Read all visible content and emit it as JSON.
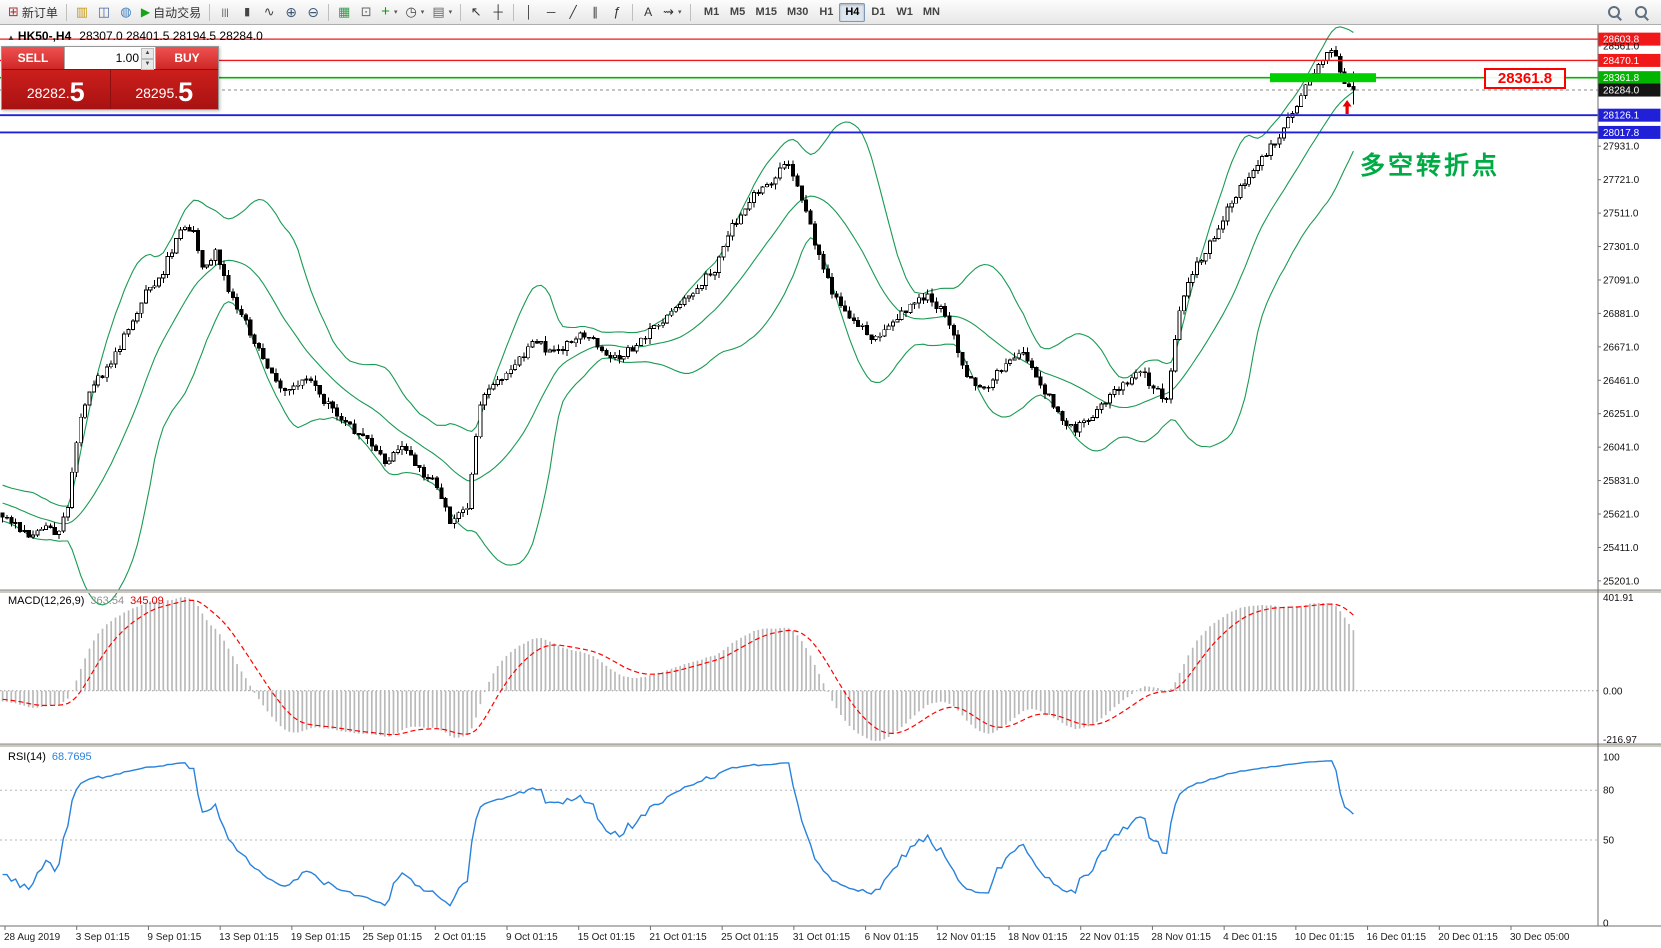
{
  "toolbar": {
    "groups": [
      {
        "items": [
          {
            "name": "new-order-button",
            "glyph": "⊞",
            "color": "#b03030",
            "size": 13,
            "label": "新订单"
          }
        ]
      },
      {
        "items": [
          {
            "name": "new-chart-button",
            "glyph": "▥",
            "color": "#c79b18",
            "size": 13
          },
          {
            "name": "profiles-button",
            "glyph": "◫",
            "color": "#46699c",
            "size": 13
          },
          {
            "name": "terminal-button",
            "glyph": "◍",
            "color": "#3f7fbf",
            "size": 13
          },
          {
            "name": "autotrading-button",
            "glyph": "▶",
            "color": "#17a317",
            "size": 12,
            "label": "自动交易"
          }
        ]
      },
      {
        "items": [
          {
            "name": "bar-chart-button",
            "glyph": "|||",
            "color": "#444",
            "size": 9
          },
          {
            "name": "candlestick-chart-button",
            "glyph": "▮",
            "color": "#444",
            "size": 11
          },
          {
            "name": "line-chart-button",
            "glyph": "∿",
            "color": "#444",
            "size": 13
          },
          {
            "name": "zoom-in-button",
            "glyph": "⊕",
            "color": "#3c5a78",
            "size": 14
          },
          {
            "name": "zoom-out-button",
            "glyph": "⊖",
            "color": "#3c5a78",
            "size": 14
          }
        ]
      },
      {
        "items": [
          {
            "name": "tile-windows-button",
            "glyph": "▦",
            "color": "#2f9e44",
            "size": 13
          },
          {
            "name": "new-window-button",
            "glyph": "⊡",
            "color": "#666666",
            "size": 13
          },
          {
            "name": "indicators-button",
            "glyph": "+",
            "color": "#0d9e0d",
            "size": 15,
            "caret": true
          },
          {
            "name": "periods-button",
            "glyph": "◷",
            "color": "#444444",
            "size": 13,
            "caret": true
          },
          {
            "name": "templates-button",
            "glyph": "▤",
            "color": "#666666",
            "size": 13,
            "caret": true
          }
        ]
      },
      {
        "items": [
          {
            "name": "cursor-button",
            "glyph": "↖",
            "color": "#333333",
            "size": 13
          },
          {
            "name": "crosshair-button",
            "glyph": "┼",
            "color": "#333333",
            "size": 13
          }
        ]
      },
      {
        "items": [
          {
            "name": "vertical-line-button",
            "glyph": "│",
            "color": "#333333",
            "size": 12
          },
          {
            "name": "horizontal-line-button",
            "glyph": "─",
            "color": "#333333",
            "size": 12
          },
          {
            "name": "trendline-button",
            "glyph": "╱",
            "color": "#333333",
            "size": 12
          },
          {
            "name": "channel-button",
            "glyph": "∥",
            "color": "#333333",
            "size": 12
          },
          {
            "name": "fibonacci-button",
            "glyph": "ƒ",
            "color": "#333333",
            "size": 13
          }
        ]
      },
      {
        "items": [
          {
            "name": "text-label-button",
            "glyph": "A",
            "color": "#333333",
            "size": 12
          },
          {
            "name": "arrows-button",
            "glyph": "⇝",
            "color": "#333333",
            "size": 13,
            "caret": true
          }
        ]
      }
    ],
    "timeframes": [
      "M1",
      "M5",
      "M15",
      "M30",
      "H1",
      "H4",
      "D1",
      "W1",
      "MN"
    ],
    "active_timeframe": "H4"
  },
  "chart_header": {
    "marker": "▲",
    "symbol": "HK50-,H4",
    "ohlc": "28307.0 28401.5 28194.5 28284.0"
  },
  "trade_panel": {
    "sell_label": "SELL",
    "buy_label": "BUY",
    "volume": "1.00",
    "sell_price_main": "28282.",
    "sell_price_big": "5",
    "buy_price_main": "28295.",
    "buy_price_big": "5"
  },
  "price_axis": {
    "ticks": [
      "28561.0",
      "27931.0",
      "27721.0",
      "27511.0",
      "27301.0",
      "27091.0",
      "26881.0",
      "26671.0",
      "26461.0",
      "26251.0",
      "26041.0",
      "25831.0",
      "25621.0",
      "25411.0",
      "25201.0"
    ],
    "levels": [
      {
        "price": 28603.8,
        "label": "28603.8",
        "color": "#f01818",
        "width": 1.3
      },
      {
        "price": 28470.1,
        "label": "28470.1",
        "color": "#f01818",
        "width": 1.3
      },
      {
        "price": 28361.8,
        "label": "28361.8",
        "color": "#00b400",
        "width": 1.6
      },
      {
        "price": 28126.1,
        "label": "28126.1",
        "color": "#2020d8",
        "width": 1.8
      },
      {
        "price": 28017.8,
        "label": "28017.8",
        "color": "#2020d8",
        "width": 1.8
      }
    ],
    "current": {
      "price": 28284.0,
      "label": "28284.0"
    }
  },
  "time_axis": {
    "labels": [
      "28 Aug 2019",
      "3 Sep 01:15",
      "9 Sep 01:15",
      "13 Sep 01:15",
      "19 Sep 01:15",
      "25 Sep 01:15",
      "2 Oct 01:15",
      "9 Oct 01:15",
      "15 Oct 01:15",
      "21 Oct 01:15",
      "25 Oct 01:15",
      "31 Oct 01:15",
      "6 Nov 01:15",
      "12 Nov 01:15",
      "18 Nov 01:15",
      "22 Nov 01:15",
      "28 Nov 01:15",
      "4 Dec 01:15",
      "10 Dec 01:15",
      "16 Dec 01:15",
      "20 Dec 01:15",
      "30 Dec 05:00"
    ]
  },
  "macd_panel": {
    "name": "MACD(12,26,9)",
    "main_value": "363.54",
    "signal_value": "345.09",
    "axis_max": "401.91",
    "axis_zero": "0.00",
    "axis_min": "-216.97"
  },
  "rsi_panel": {
    "name": "RSI(14)",
    "value": "68.7695",
    "axis": [
      "100",
      "80",
      "50",
      "0"
    ],
    "levels": [
      80,
      50
    ]
  },
  "annotations": {
    "price_callout": "28361.8",
    "note": "多空转折点",
    "highlight": {
      "price": 28361.8,
      "from": 0.795,
      "to": 0.8615
    },
    "arrow": {
      "price": 28165,
      "x": 0.843
    }
  },
  "colors": {
    "up_candle": "#ffffff",
    "down_candle": "#000000",
    "bollinger": "#1a9a52",
    "macd_histogram": "#b9b9b9",
    "macd_signal": "#ff0000",
    "rsi_line": "#2882dc",
    "highlight_green": "#00d000"
  },
  "chart_data": {
    "type": "candlestick",
    "symbol": "HK50-",
    "timeframe": "H4",
    "ohlc_current": {
      "open": 28307.0,
      "high": 28401.5,
      "low": 28194.5,
      "close": 28284.0
    },
    "price_range": [
      25150,
      28680
    ],
    "candle_count": 312,
    "plot_right_fraction": 0.848,
    "indicators": {
      "bollinger_period": 20,
      "bollinger_deviation": 2,
      "macd": [
        12,
        26,
        9
      ],
      "rsi_period": 14
    },
    "price_path": [
      [
        0,
        25620
      ],
      [
        0.01,
        25540
      ],
      [
        0.022,
        25460
      ],
      [
        0.032,
        25560
      ],
      [
        0.04,
        25500
      ],
      [
        0.048,
        25640
      ],
      [
        0.056,
        26180
      ],
      [
        0.065,
        26420
      ],
      [
        0.08,
        26560
      ],
      [
        0.095,
        26820
      ],
      [
        0.105,
        27000
      ],
      [
        0.118,
        27120
      ],
      [
        0.13,
        27390
      ],
      [
        0.14,
        27430
      ],
      [
        0.148,
        27180
      ],
      [
        0.158,
        27260
      ],
      [
        0.168,
        27020
      ],
      [
        0.18,
        26820
      ],
      [
        0.195,
        26560
      ],
      [
        0.21,
        26380
      ],
      [
        0.225,
        26480
      ],
      [
        0.24,
        26320
      ],
      [
        0.255,
        26180
      ],
      [
        0.27,
        26080
      ],
      [
        0.283,
        25940
      ],
      [
        0.295,
        26060
      ],
      [
        0.308,
        25900
      ],
      [
        0.32,
        25820
      ],
      [
        0.332,
        25560
      ],
      [
        0.345,
        25680
      ],
      [
        0.353,
        26320
      ],
      [
        0.365,
        26440
      ],
      [
        0.38,
        26580
      ],
      [
        0.395,
        26700
      ],
      [
        0.41,
        26620
      ],
      [
        0.425,
        26740
      ],
      [
        0.44,
        26700
      ],
      [
        0.455,
        26580
      ],
      [
        0.47,
        26700
      ],
      [
        0.485,
        26820
      ],
      [
        0.5,
        26920
      ],
      [
        0.515,
        27060
      ],
      [
        0.528,
        27160
      ],
      [
        0.54,
        27420
      ],
      [
        0.555,
        27620
      ],
      [
        0.57,
        27720
      ],
      [
        0.582,
        27830
      ],
      [
        0.592,
        27600
      ],
      [
        0.603,
        27280
      ],
      [
        0.615,
        26980
      ],
      [
        0.63,
        26840
      ],
      [
        0.645,
        26720
      ],
      [
        0.66,
        26820
      ],
      [
        0.672,
        26940
      ],
      [
        0.685,
        26980
      ],
      [
        0.7,
        26860
      ],
      [
        0.712,
        26520
      ],
      [
        0.725,
        26380
      ],
      [
        0.74,
        26540
      ],
      [
        0.755,
        26640
      ],
      [
        0.768,
        26440
      ],
      [
        0.78,
        26280
      ],
      [
        0.793,
        26140
      ],
      [
        0.805,
        26220
      ],
      [
        0.818,
        26340
      ],
      [
        0.83,
        26440
      ],
      [
        0.842,
        26520
      ],
      [
        0.852,
        26420
      ],
      [
        0.862,
        26340
      ],
      [
        0.872,
        26960
      ],
      [
        0.882,
        27160
      ],
      [
        0.895,
        27340
      ],
      [
        0.908,
        27560
      ],
      [
        0.92,
        27720
      ],
      [
        0.932,
        27860
      ],
      [
        0.944,
        27980
      ],
      [
        0.956,
        28160
      ],
      [
        0.968,
        28360
      ],
      [
        0.978,
        28480
      ],
      [
        0.986,
        28540
      ],
      [
        0.993,
        28340
      ],
      [
        1,
        28284
      ]
    ]
  }
}
